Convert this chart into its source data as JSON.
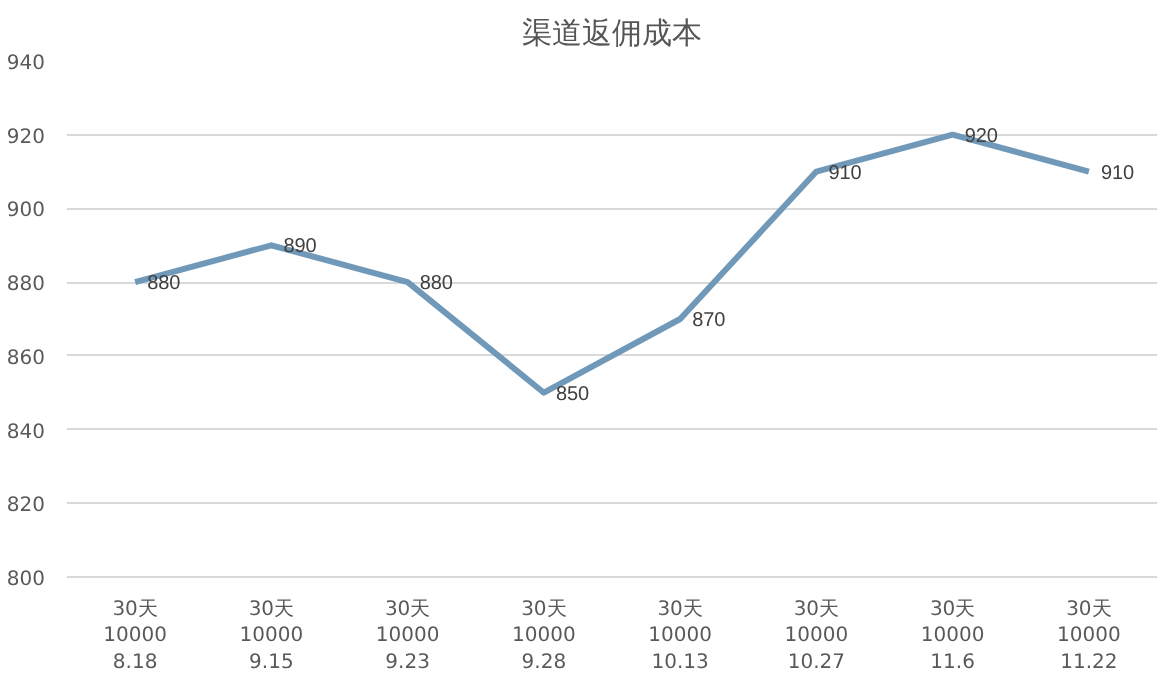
{
  "chart_data": {
    "type": "line",
    "title": "渠道返佣成本",
    "categories": [
      "30天\n10000\n8.18",
      "30天\n10000\n9.15",
      "30天\n10000\n9.23",
      "30天\n10000\n9.28",
      "30天\n10000\n10.13",
      "30天\n10000\n10.27",
      "30天\n10000\n11.6",
      "30天\n10000\n11.22"
    ],
    "series": [
      {
        "color": "#7098b8",
        "values": [
          880,
          890,
          880,
          850,
          870,
          910,
          920,
          910
        ]
      }
    ],
    "ylim": [
      800,
      940
    ],
    "yticks": [
      800,
      820,
      840,
      860,
      880,
      900,
      920,
      940
    ],
    "grid": "y",
    "data_labels": true,
    "marker": "none",
    "line_style": "solid"
  }
}
